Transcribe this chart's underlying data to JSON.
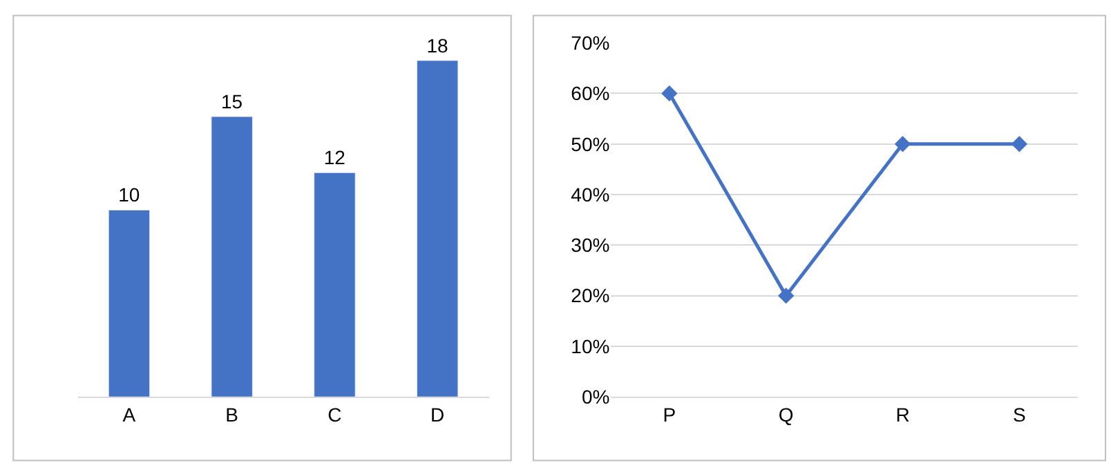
{
  "chart_data": [
    {
      "type": "bar",
      "categories": [
        "A",
        "B",
        "C",
        "D"
      ],
      "values": [
        10,
        15,
        12,
        18
      ],
      "color": "#4472c4",
      "data_labels": true,
      "tick_labels": "x",
      "grid": false
    },
    {
      "type": "line",
      "categories": [
        "P",
        "Q",
        "R",
        "S"
      ],
      "values": [
        60,
        20,
        50,
        50
      ],
      "color": "#4472c4",
      "marker": "diamond",
      "line_style": "solid",
      "ylim": [
        0,
        70
      ],
      "yticks": [
        {
          "value": 0,
          "label": "0%"
        },
        {
          "value": 10,
          "label": "10%"
        },
        {
          "value": 20,
          "label": "20%"
        },
        {
          "value": 30,
          "label": "30%"
        },
        {
          "value": 40,
          "label": "40%"
        },
        {
          "value": 50,
          "label": "50%"
        },
        {
          "value": 60,
          "label": "60%"
        },
        {
          "value": 70,
          "label": "70%"
        }
      ],
      "grid": "y"
    }
  ]
}
